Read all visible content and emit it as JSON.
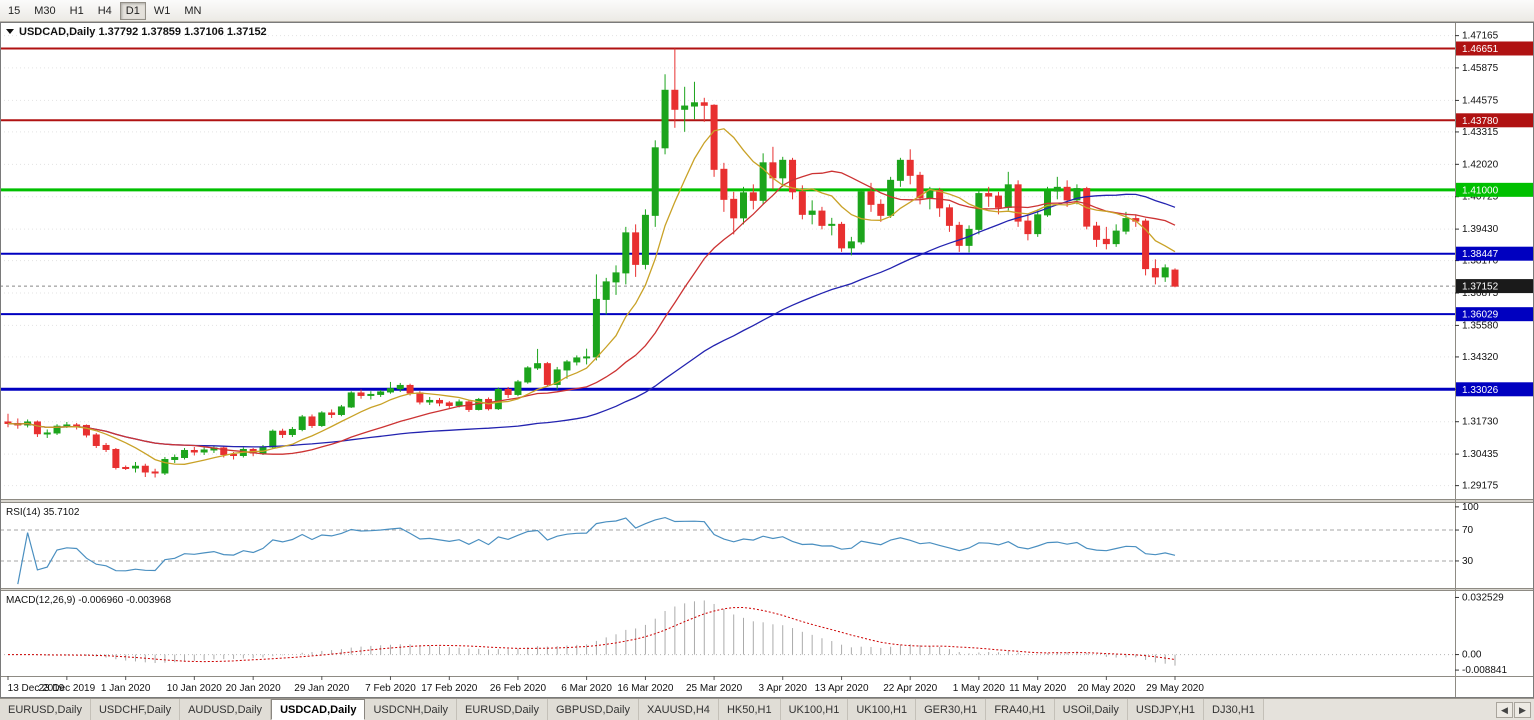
{
  "toolbar": {
    "timeframes": [
      {
        "label": "15",
        "active": false
      },
      {
        "label": "M30",
        "active": false
      },
      {
        "label": "H1",
        "active": false
      },
      {
        "label": "H4",
        "active": false
      },
      {
        "label": "D1",
        "active": true
      },
      {
        "label": "W1",
        "active": false
      },
      {
        "label": "MN",
        "active": false
      }
    ]
  },
  "chart": {
    "title": {
      "dropdown_icon": "▼",
      "symbol": "USDCAD,Daily",
      "open": "1.37792",
      "high": "1.37859",
      "low": "1.37106",
      "close": "1.37152"
    }
  },
  "chart_data": {
    "type": "candlestick",
    "symbol": "USDCAD",
    "timeframe": "Daily",
    "price_range": [
      1.288,
      1.4755
    ],
    "colors": {
      "bull": "#1CA41C",
      "bear": "#E83030",
      "ma_fast": "#C9A227",
      "ma_mid": "#CC3333",
      "ma_slow": "#2323B0",
      "grid": "#E3E3E3",
      "rsi": "#4A8FC0",
      "macd_hist": "#ABABAB",
      "macd_signal": "#CC0000"
    },
    "y_axis": {
      "ticks": [
        "1.47165",
        "1.45875",
        "1.44575",
        "1.43315",
        "1.42020",
        "1.40725",
        "1.39430",
        "1.38170",
        "1.36875",
        "1.35580",
        "1.34320",
        "1.33030",
        "1.31730",
        "1.30435",
        "1.29175"
      ]
    },
    "x_axis": {
      "labels": [
        "13 Dec 2019",
        "23 Dec 2019",
        "1 Jan 2020",
        "10 Jan 2020",
        "20 Jan 2020",
        "29 Jan 2020",
        "7 Feb 2020",
        "17 Feb 2020",
        "26 Feb 2020",
        "6 Mar 2020",
        "16 Mar 2020",
        "25 Mar 2020",
        "3 Apr 2020",
        "13 Apr 2020",
        "22 Apr 2020",
        "1 May 2020",
        "11 May 2020",
        "20 May 2020",
        "29 May 2020"
      ],
      "indices": [
        0,
        6,
        12,
        19,
        25,
        32,
        39,
        45,
        52,
        59,
        65,
        72,
        79,
        85,
        92,
        99,
        105,
        112,
        119
      ]
    },
    "h_lines": [
      {
        "value": 1.46651,
        "label": "1.46651",
        "color": "#B01212",
        "width": 2
      },
      {
        "value": 1.4378,
        "label": "1.43780",
        "color": "#B01212",
        "width": 2
      },
      {
        "value": 1.41,
        "label": "1.41000",
        "color": "#00C000",
        "width": 3
      },
      {
        "value": 1.38447,
        "label": "1.38447",
        "color": "#0000C0",
        "width": 2
      },
      {
        "value": 1.36029,
        "label": "1.36029",
        "color": "#0000C0",
        "width": 2
      },
      {
        "value": 1.33026,
        "label": "1.33026",
        "color": "#0000C0",
        "width": 3
      }
    ],
    "current_price": {
      "value": 1.37152,
      "label": "1.37152",
      "badge_bg": "#1A1A1A"
    },
    "moving_averages": [
      {
        "period": 50,
        "color": "#2323B0"
      },
      {
        "period": 20,
        "color": "#CC3333"
      },
      {
        "period": 8,
        "color": "#C9A227"
      }
    ],
    "rsi": {
      "label": "RSI(14)",
      "period": 14,
      "value": "35.7102",
      "axis_labels": [
        "100",
        "70",
        "30"
      ],
      "axis_values": [
        100,
        70,
        30
      ],
      "levels": [
        70,
        30
      ],
      "color": "#4A8FC0"
    },
    "macd": {
      "label": "MACD(12,26,9)",
      "main_value": "-0.006960",
      "signal_value": "-0.003968",
      "axis_labels": [
        "0.032529",
        "0.00",
        "-0.008841"
      ],
      "axis_values": [
        0.032529,
        0,
        -0.008841
      ]
    },
    "candles": [
      [
        1.3172,
        1.3205,
        1.3151,
        1.3166
      ],
      [
        1.3166,
        1.3186,
        1.3145,
        1.316
      ],
      [
        1.316,
        1.3182,
        1.315,
        1.3172
      ],
      [
        1.3172,
        1.3178,
        1.3112,
        1.3125
      ],
      [
        1.3125,
        1.3142,
        1.3108,
        1.3128
      ],
      [
        1.3128,
        1.3163,
        1.312,
        1.3155
      ],
      [
        1.3155,
        1.3172,
        1.3148,
        1.316
      ],
      [
        1.316,
        1.3168,
        1.3142,
        1.3158
      ],
      [
        1.3158,
        1.3162,
        1.311,
        1.312
      ],
      [
        1.312,
        1.3128,
        1.3068,
        1.3078
      ],
      [
        1.3078,
        1.3088,
        1.3052,
        1.3062
      ],
      [
        1.3062,
        1.3068,
        1.2982,
        1.299
      ],
      [
        1.299,
        1.2998,
        1.298,
        1.2988
      ],
      [
        1.2988,
        1.3012,
        1.297,
        1.2995
      ],
      [
        1.2995,
        1.3005,
        1.2952,
        1.2972
      ],
      [
        1.2972,
        1.2985,
        1.295,
        1.2968
      ],
      [
        1.2968,
        1.3032,
        1.296,
        1.3022
      ],
      [
        1.3022,
        1.3042,
        1.3008,
        1.303
      ],
      [
        1.303,
        1.3068,
        1.3022,
        1.3058
      ],
      [
        1.3058,
        1.3072,
        1.3038,
        1.3052
      ],
      [
        1.3052,
        1.307,
        1.304,
        1.306
      ],
      [
        1.306,
        1.3078,
        1.3048,
        1.3068
      ],
      [
        1.3068,
        1.3075,
        1.303,
        1.3042
      ],
      [
        1.3042,
        1.3052,
        1.3022,
        1.3038
      ],
      [
        1.3038,
        1.307,
        1.303,
        1.3062
      ],
      [
        1.3062,
        1.3068,
        1.3035,
        1.3048
      ],
      [
        1.3048,
        1.308,
        1.304,
        1.3072
      ],
      [
        1.3072,
        1.3142,
        1.3065,
        1.3135
      ],
      [
        1.3135,
        1.3145,
        1.3108,
        1.3122
      ],
      [
        1.3122,
        1.3152,
        1.3112,
        1.3142
      ],
      [
        1.3142,
        1.32,
        1.3135,
        1.3192
      ],
      [
        1.3192,
        1.3202,
        1.3148,
        1.3158
      ],
      [
        1.3158,
        1.3215,
        1.3152,
        1.3208
      ],
      [
        1.3208,
        1.3222,
        1.3188,
        1.3202
      ],
      [
        1.3202,
        1.324,
        1.3195,
        1.3232
      ],
      [
        1.3232,
        1.3295,
        1.3228,
        1.3288
      ],
      [
        1.3288,
        1.3302,
        1.3265,
        1.3278
      ],
      [
        1.3278,
        1.3295,
        1.3262,
        1.3282
      ],
      [
        1.3282,
        1.33,
        1.3272,
        1.3292
      ],
      [
        1.3292,
        1.3332,
        1.3285,
        1.3305
      ],
      [
        1.3305,
        1.3328,
        1.3292,
        1.3318
      ],
      [
        1.3318,
        1.3325,
        1.3278,
        1.3288
      ],
      [
        1.3288,
        1.3295,
        1.3242,
        1.3252
      ],
      [
        1.3252,
        1.3272,
        1.324,
        1.3258
      ],
      [
        1.3258,
        1.3268,
        1.3235,
        1.3248
      ],
      [
        1.3248,
        1.3255,
        1.3228,
        1.3238
      ],
      [
        1.3238,
        1.3262,
        1.323,
        1.3252
      ],
      [
        1.3252,
        1.3258,
        1.3212,
        1.3222
      ],
      [
        1.3222,
        1.3268,
        1.3218,
        1.3262
      ],
      [
        1.3262,
        1.327,
        1.3218,
        1.3225
      ],
      [
        1.3225,
        1.331,
        1.322,
        1.3302
      ],
      [
        1.3302,
        1.3312,
        1.3268,
        1.3282
      ],
      [
        1.3282,
        1.334,
        1.3275,
        1.3332
      ],
      [
        1.3332,
        1.3395,
        1.3325,
        1.3388
      ],
      [
        1.3388,
        1.3464,
        1.338,
        1.3405
      ],
      [
        1.3405,
        1.3412,
        1.3315,
        1.3322
      ],
      [
        1.3322,
        1.3392,
        1.3302,
        1.338
      ],
      [
        1.338,
        1.342,
        1.3345,
        1.3412
      ],
      [
        1.3412,
        1.3438,
        1.3398,
        1.3428
      ],
      [
        1.3428,
        1.3465,
        1.3402,
        1.3432
      ],
      [
        1.3432,
        1.3762,
        1.3418,
        1.3662
      ],
      [
        1.3662,
        1.3748,
        1.3602,
        1.3732
      ],
      [
        1.3732,
        1.3798,
        1.368,
        1.3768
      ],
      [
        1.3768,
        1.3952,
        1.3722,
        1.3928
      ],
      [
        1.3928,
        1.3962,
        1.3752,
        1.3802
      ],
      [
        1.3802,
        1.4022,
        1.3782,
        1.3998
      ],
      [
        1.3998,
        1.4298,
        1.3952,
        1.4268
      ],
      [
        1.4268,
        1.4562,
        1.4242,
        1.4498
      ],
      [
        1.4498,
        1.4665,
        1.4348,
        1.4422
      ],
      [
        1.4422,
        1.4512,
        1.4332,
        1.4435
      ],
      [
        1.4435,
        1.4532,
        1.4382,
        1.4448
      ],
      [
        1.4448,
        1.4468,
        1.4372,
        1.4438
      ],
      [
        1.4438,
        1.4442,
        1.4152,
        1.4182
      ],
      [
        1.4182,
        1.4208,
        1.4012,
        1.4062
      ],
      [
        1.4062,
        1.4092,
        1.3922,
        1.3988
      ],
      [
        1.3988,
        1.4112,
        1.3962,
        1.4088
      ],
      [
        1.4088,
        1.4122,
        1.4022,
        1.4058
      ],
      [
        1.4058,
        1.4246,
        1.4042,
        1.4208
      ],
      [
        1.4208,
        1.4272,
        1.4102,
        1.4148
      ],
      [
        1.4148,
        1.4232,
        1.4112,
        1.4218
      ],
      [
        1.4218,
        1.4228,
        1.4062,
        1.4092
      ],
      [
        1.4092,
        1.4118,
        1.3982,
        1.4002
      ],
      [
        1.4002,
        1.4058,
        1.3962,
        1.4015
      ],
      [
        1.4015,
        1.4032,
        1.3942,
        1.3958
      ],
      [
        1.3958,
        1.3988,
        1.3918,
        1.3962
      ],
      [
        1.3962,
        1.3972,
        1.3852,
        1.3868
      ],
      [
        1.3868,
        1.3912,
        1.3838,
        1.3892
      ],
      [
        1.3892,
        1.4102,
        1.3882,
        1.4092
      ],
      [
        1.4092,
        1.4128,
        1.4012,
        1.4042
      ],
      [
        1.4042,
        1.4062,
        1.3972,
        1.3998
      ],
      [
        1.3998,
        1.4152,
        1.3988,
        1.4138
      ],
      [
        1.4138,
        1.4228,
        1.4112,
        1.4218
      ],
      [
        1.4218,
        1.4262,
        1.4122,
        1.4158
      ],
      [
        1.4158,
        1.4172,
        1.4042,
        1.4068
      ],
      [
        1.4068,
        1.4112,
        1.4022,
        1.4098
      ],
      [
        1.4098,
        1.4108,
        1.3992,
        1.4028
      ],
      [
        1.4028,
        1.4042,
        1.3932,
        1.3958
      ],
      [
        1.3958,
        1.3972,
        1.3852,
        1.3878
      ],
      [
        1.3878,
        1.3958,
        1.385,
        1.3942
      ],
      [
        1.3942,
        1.4102,
        1.3922,
        1.4085
      ],
      [
        1.4085,
        1.4112,
        1.4032,
        1.4075
      ],
      [
        1.4075,
        1.4092,
        1.4002,
        1.403
      ],
      [
        1.403,
        1.4172,
        1.4018,
        1.412
      ],
      [
        1.412,
        1.4138,
        1.3952,
        1.3975
      ],
      [
        1.3975,
        1.4002,
        1.3898,
        1.3925
      ],
      [
        1.3925,
        1.4022,
        1.3912,
        1.4
      ],
      [
        1.4,
        1.4112,
        1.3992,
        1.4095
      ],
      [
        1.4095,
        1.4152,
        1.4062,
        1.411
      ],
      [
        1.411,
        1.4138,
        1.4032,
        1.406
      ],
      [
        1.406,
        1.4122,
        1.4042,
        1.4105
      ],
      [
        1.4105,
        1.4112,
        1.3942,
        1.3955
      ],
      [
        1.3955,
        1.3972,
        1.3872,
        1.3902
      ],
      [
        1.3902,
        1.3952,
        1.3862,
        1.3885
      ],
      [
        1.3885,
        1.3962,
        1.3872,
        1.3935
      ],
      [
        1.3935,
        1.4012,
        1.3922,
        1.3985
      ],
      [
        1.3985,
        1.4002,
        1.3952,
        1.3975
      ],
      [
        1.3975,
        1.3985,
        1.3758,
        1.3785
      ],
      [
        1.3785,
        1.3822,
        1.3722,
        1.3752
      ],
      [
        1.3752,
        1.3802,
        1.3732,
        1.3788
      ],
      [
        1.37792,
        1.37859,
        1.37106,
        1.37152
      ]
    ]
  },
  "tabs": {
    "scroll_left": "◀",
    "scroll_right": "▶",
    "items": [
      {
        "label": "EURUSD,Daily",
        "active": false
      },
      {
        "label": "USDCHF,Daily",
        "active": false
      },
      {
        "label": "AUDUSD,Daily",
        "active": false
      },
      {
        "label": "USDCAD,Daily",
        "active": true
      },
      {
        "label": "USDCNH,Daily",
        "active": false
      },
      {
        "label": "EURUSD,Daily",
        "active": false
      },
      {
        "label": "GBPUSD,Daily",
        "active": false
      },
      {
        "label": "XAUUSD,H4",
        "active": false
      },
      {
        "label": "HK50,H1",
        "active": false
      },
      {
        "label": "UK100,H1",
        "active": false
      },
      {
        "label": "UK100,H1",
        "active": false
      },
      {
        "label": "GER30,H1",
        "active": false
      },
      {
        "label": "FRA40,H1",
        "active": false
      },
      {
        "label": "USOil,Daily",
        "active": false
      },
      {
        "label": "USDJPY,H1",
        "active": false
      },
      {
        "label": "DJ30,H1",
        "active": false
      }
    ]
  }
}
